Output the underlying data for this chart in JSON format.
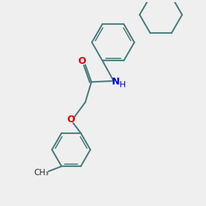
{
  "bg_color": "#efefef",
  "bond_color": "#4a7c7c",
  "bond_width": 1.6,
  "N_color": "#0000ee",
  "O_color": "#ee0000",
  "figsize": [
    3.0,
    3.0
  ],
  "dpi": 100,
  "xlim": [
    0,
    10
  ],
  "ylim": [
    0,
    10
  ]
}
